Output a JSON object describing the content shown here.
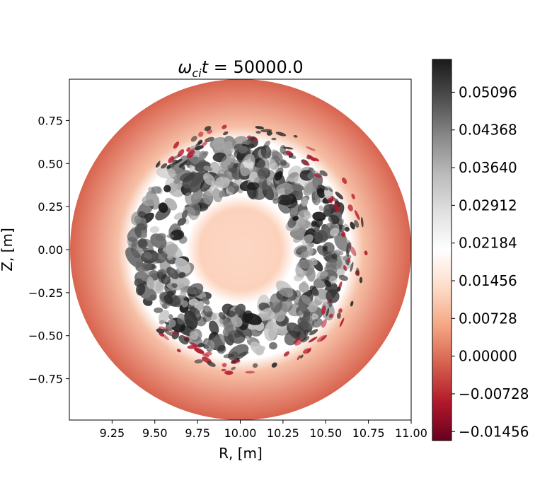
{
  "chart_data": {
    "type": "heatmap",
    "title_main": "ω",
    "title_sub": "ci",
    "title_var": "t",
    "title_value": " = 50000.0",
    "xlabel": "R, [m]",
    "ylabel": "Z, [m]",
    "xlim": [
      9.0,
      11.0
    ],
    "ylim": [
      -0.99,
      0.99
    ],
    "x_ticks": [
      9.25,
      9.5,
      9.75,
      10.0,
      10.25,
      10.5,
      10.75,
      11.0
    ],
    "x_tick_labels": [
      "9.25",
      "9.50",
      "9.75",
      "10.00",
      "10.25",
      "10.50",
      "10.75",
      "11.00"
    ],
    "y_ticks": [
      0.75,
      0.5,
      0.25,
      0.0,
      -0.25,
      -0.5,
      -0.75
    ],
    "y_tick_labels": [
      "0.75",
      "0.50",
      "0.25",
      "0.00",
      "−0.25",
      "−0.50",
      "−0.75"
    ],
    "domain": {
      "center_R": 10.0,
      "center_Z": 0.0,
      "radius": 1.0
    },
    "colormap": "RdGy",
    "colormap_colors": [
      "#67001f",
      "#b2182b",
      "#d6604d",
      "#f4a582",
      "#fddbc7",
      "#ffffff",
      "#e0e0e0",
      "#bababa",
      "#878787",
      "#4d4d4d",
      "#1a1a1a"
    ],
    "colorbar": {
      "vmin": -0.0163,
      "vmax": 0.0573,
      "ticks": [
        -0.01456,
        -0.00728,
        0.0,
        0.00728,
        0.01456,
        0.02184,
        0.02912,
        0.0364,
        0.04368,
        0.05096
      ],
      "tick_labels": [
        "−0.01456",
        "−0.00728",
        "0.00000",
        "0.00728",
        "0.01456",
        "0.02184",
        "0.02912",
        "0.03640",
        "0.04368",
        "0.05096"
      ]
    },
    "field_regions": [
      {
        "region": "core (r < 0.3 m)",
        "approx_value": 0.009
      },
      {
        "region": "turbulent annulus (0.3–0.65 m)",
        "approx_range": [
          0.0,
          0.055
        ]
      },
      {
        "region": "outer edge (r → 1 m)",
        "approx_value": 0.0
      }
    ]
  }
}
